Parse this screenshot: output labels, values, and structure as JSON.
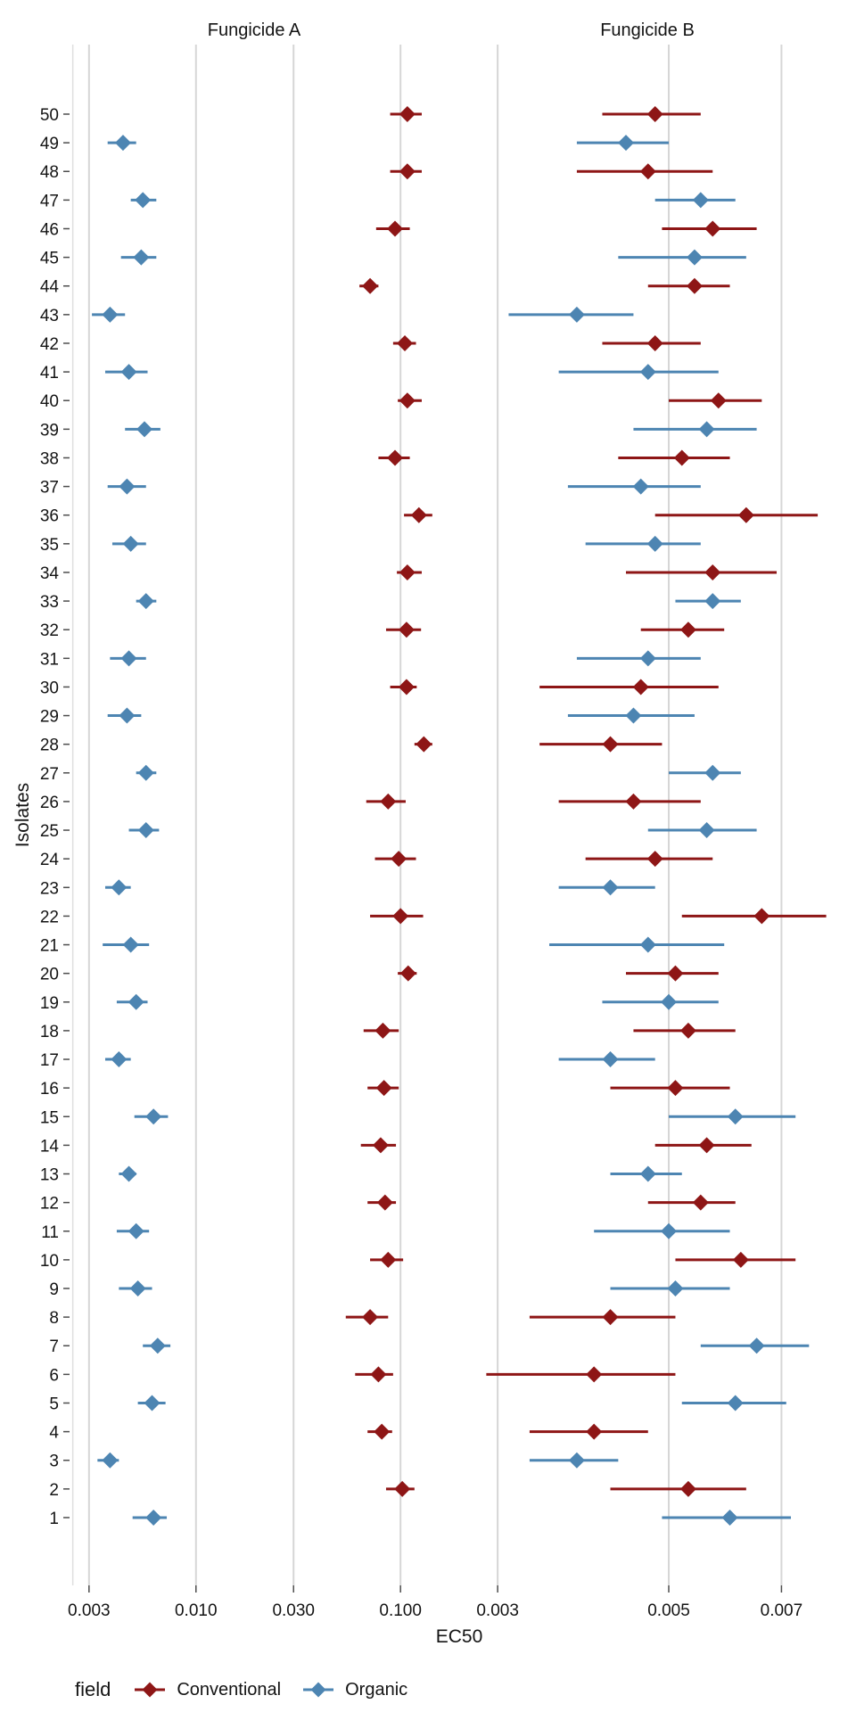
{
  "legend": {
    "title": "field",
    "items": [
      {
        "label": "Conventional",
        "color": "#8E1616"
      },
      {
        "label": "Organic",
        "color": "#4D85B2"
      }
    ]
  },
  "chart_data": {
    "type": "scatter",
    "variant": "pointrange-forest",
    "xlabel": "EC50",
    "ylabel": "Isolates",
    "x_scale": "log10",
    "grid": "major-vertical-only",
    "legend_position": "bottom-left",
    "y_ticks": [
      1,
      2,
      3,
      4,
      5,
      6,
      7,
      8,
      9,
      10,
      11,
      12,
      13,
      14,
      15,
      16,
      17,
      18,
      19,
      20,
      21,
      22,
      23,
      24,
      25,
      26,
      27,
      28,
      29,
      30,
      31,
      32,
      33,
      34,
      35,
      36,
      37,
      38,
      39,
      40,
      41,
      42,
      43,
      44,
      45,
      46,
      47,
      48,
      49,
      50
    ],
    "columns": [
      "isolate",
      "field",
      "ec50",
      "ci_low",
      "ci_high"
    ],
    "facets": [
      {
        "title": "Fungicide A",
        "x_ticks": [
          0.003,
          0.01,
          0.03,
          0.1
        ],
        "x_tick_labels": [
          "0.003",
          "0.010",
          "0.030",
          "0.100"
        ],
        "x_minor_ticks": [
          0.0025
        ],
        "x_domain": [
          0.00241,
          0.1537
        ],
        "rows": [
          [
            1,
            "Organic",
            0.0062,
            0.0049,
            0.0072
          ],
          [
            2,
            "Conventional",
            0.102,
            0.085,
            0.117
          ],
          [
            3,
            "Organic",
            0.0038,
            0.0033,
            0.0042
          ],
          [
            4,
            "Conventional",
            0.081,
            0.069,
            0.091
          ],
          [
            5,
            "Organic",
            0.0061,
            0.0052,
            0.0071
          ],
          [
            6,
            "Conventional",
            0.078,
            0.06,
            0.092
          ],
          [
            7,
            "Organic",
            0.0065,
            0.0055,
            0.0075
          ],
          [
            8,
            "Conventional",
            0.071,
            0.054,
            0.087
          ],
          [
            9,
            "Organic",
            0.0052,
            0.0042,
            0.0061
          ],
          [
            10,
            "Conventional",
            0.087,
            0.071,
            0.103
          ],
          [
            11,
            "Organic",
            0.0051,
            0.0041,
            0.0059
          ],
          [
            12,
            "Conventional",
            0.084,
            0.069,
            0.095
          ],
          [
            13,
            "Organic",
            0.0047,
            0.0042,
            0.0051
          ],
          [
            14,
            "Conventional",
            0.08,
            0.064,
            0.095
          ],
          [
            15,
            "Organic",
            0.0062,
            0.005,
            0.0073
          ],
          [
            16,
            "Conventional",
            0.083,
            0.069,
            0.098
          ],
          [
            17,
            "Organic",
            0.0042,
            0.0036,
            0.0048
          ],
          [
            18,
            "Conventional",
            0.082,
            0.066,
            0.098
          ],
          [
            19,
            "Organic",
            0.0051,
            0.0041,
            0.0058
          ],
          [
            20,
            "Conventional",
            0.109,
            0.097,
            0.12
          ],
          [
            21,
            "Organic",
            0.0048,
            0.0035,
            0.0059
          ],
          [
            22,
            "Conventional",
            0.1,
            0.071,
            0.129
          ],
          [
            23,
            "Organic",
            0.0042,
            0.0036,
            0.0048
          ],
          [
            24,
            "Conventional",
            0.098,
            0.075,
            0.119
          ],
          [
            25,
            "Organic",
            0.0057,
            0.0047,
            0.0066
          ],
          [
            26,
            "Conventional",
            0.087,
            0.068,
            0.106
          ],
          [
            27,
            "Organic",
            0.0057,
            0.0051,
            0.0064
          ],
          [
            28,
            "Conventional",
            0.13,
            0.117,
            0.143
          ],
          [
            29,
            "Organic",
            0.0046,
            0.0037,
            0.0054
          ],
          [
            30,
            "Conventional",
            0.107,
            0.089,
            0.12
          ],
          [
            31,
            "Organic",
            0.0047,
            0.0038,
            0.0057
          ],
          [
            32,
            "Conventional",
            0.107,
            0.085,
            0.126
          ],
          [
            33,
            "Organic",
            0.0057,
            0.0051,
            0.0064
          ],
          [
            34,
            "Conventional",
            0.108,
            0.096,
            0.127
          ],
          [
            35,
            "Organic",
            0.0048,
            0.0039,
            0.0057
          ],
          [
            36,
            "Conventional",
            0.123,
            0.104,
            0.143
          ],
          [
            37,
            "Organic",
            0.0046,
            0.0037,
            0.0057
          ],
          [
            38,
            "Conventional",
            0.094,
            0.078,
            0.111
          ],
          [
            39,
            "Organic",
            0.0056,
            0.0045,
            0.0067
          ],
          [
            40,
            "Conventional",
            0.108,
            0.097,
            0.127
          ],
          [
            41,
            "Organic",
            0.0047,
            0.0036,
            0.0058
          ],
          [
            42,
            "Conventional",
            0.105,
            0.092,
            0.119
          ],
          [
            43,
            "Organic",
            0.0038,
            0.0031,
            0.0045
          ],
          [
            44,
            "Conventional",
            0.071,
            0.063,
            0.078
          ],
          [
            45,
            "Organic",
            0.0054,
            0.0043,
            0.0064
          ],
          [
            46,
            "Conventional",
            0.094,
            0.076,
            0.111
          ],
          [
            47,
            "Organic",
            0.0055,
            0.0048,
            0.0064
          ],
          [
            48,
            "Conventional",
            0.108,
            0.089,
            0.127
          ],
          [
            49,
            "Organic",
            0.0044,
            0.0037,
            0.0051
          ],
          [
            50,
            "Conventional",
            0.108,
            0.089,
            0.127
          ]
        ]
      },
      {
        "title": "Fungicide B",
        "x_ticks": [
          0.003,
          0.005,
          0.007
        ],
        "x_tick_labels": [
          "0.003",
          "0.005",
          "0.007"
        ],
        "x_minor_ticks": [],
        "x_domain": [
          0.00257,
          0.00856
        ],
        "rows": [
          [
            1,
            "Organic",
            0.006,
            0.0049,
            0.0072
          ],
          [
            2,
            "Conventional",
            0.0053,
            0.0042,
            0.0063
          ],
          [
            3,
            "Organic",
            0.0038,
            0.0033,
            0.0043
          ],
          [
            4,
            "Conventional",
            0.004,
            0.0033,
            0.0047
          ],
          [
            5,
            "Organic",
            0.0061,
            0.0052,
            0.0071
          ],
          [
            6,
            "Conventional",
            0.004,
            0.0029,
            0.0051
          ],
          [
            7,
            "Organic",
            0.0065,
            0.0055,
            0.0076
          ],
          [
            8,
            "Conventional",
            0.0042,
            0.0033,
            0.0051
          ],
          [
            9,
            "Organic",
            0.0051,
            0.0042,
            0.006
          ],
          [
            10,
            "Conventional",
            0.0062,
            0.0051,
            0.0073
          ],
          [
            11,
            "Organic",
            0.005,
            0.004,
            0.006
          ],
          [
            12,
            "Conventional",
            0.0055,
            0.0047,
            0.0061
          ],
          [
            13,
            "Organic",
            0.0047,
            0.0042,
            0.0052
          ],
          [
            14,
            "Conventional",
            0.0056,
            0.0048,
            0.0064
          ],
          [
            15,
            "Organic",
            0.0061,
            0.005,
            0.0073
          ],
          [
            16,
            "Conventional",
            0.0051,
            0.0042,
            0.006
          ],
          [
            17,
            "Organic",
            0.0042,
            0.0036,
            0.0048
          ],
          [
            18,
            "Conventional",
            0.0053,
            0.0045,
            0.0061
          ],
          [
            19,
            "Organic",
            0.005,
            0.0041,
            0.0058
          ],
          [
            20,
            "Conventional",
            0.0051,
            0.0044,
            0.0058
          ],
          [
            21,
            "Organic",
            0.0047,
            0.0035,
            0.0059
          ],
          [
            22,
            "Conventional",
            0.0066,
            0.0052,
            0.008
          ],
          [
            23,
            "Organic",
            0.0042,
            0.0036,
            0.0048
          ],
          [
            24,
            "Conventional",
            0.0048,
            0.0039,
            0.0057
          ],
          [
            25,
            "Organic",
            0.0056,
            0.0047,
            0.0065
          ],
          [
            26,
            "Conventional",
            0.0045,
            0.0036,
            0.0055
          ],
          [
            27,
            "Organic",
            0.0057,
            0.005,
            0.0062
          ],
          [
            28,
            "Conventional",
            0.0042,
            0.0034,
            0.0049
          ],
          [
            29,
            "Organic",
            0.0045,
            0.0037,
            0.0054
          ],
          [
            30,
            "Conventional",
            0.0046,
            0.0034,
            0.0058
          ],
          [
            31,
            "Organic",
            0.0047,
            0.0038,
            0.0055
          ],
          [
            32,
            "Conventional",
            0.0053,
            0.0046,
            0.0059
          ],
          [
            33,
            "Organic",
            0.0057,
            0.0051,
            0.0062
          ],
          [
            34,
            "Conventional",
            0.0057,
            0.0044,
            0.0069
          ],
          [
            35,
            "Organic",
            0.0048,
            0.0039,
            0.0055
          ],
          [
            36,
            "Conventional",
            0.0063,
            0.0048,
            0.0078
          ],
          [
            37,
            "Organic",
            0.0046,
            0.0037,
            0.0055
          ],
          [
            38,
            "Conventional",
            0.0052,
            0.0043,
            0.006
          ],
          [
            39,
            "Organic",
            0.0056,
            0.0045,
            0.0065
          ],
          [
            40,
            "Conventional",
            0.0058,
            0.005,
            0.0066
          ],
          [
            41,
            "Organic",
            0.0047,
            0.0036,
            0.0058
          ],
          [
            42,
            "Conventional",
            0.0048,
            0.0041,
            0.0055
          ],
          [
            43,
            "Organic",
            0.0038,
            0.0031,
            0.0045
          ],
          [
            44,
            "Conventional",
            0.0054,
            0.0047,
            0.006
          ],
          [
            45,
            "Organic",
            0.0054,
            0.0043,
            0.0063
          ],
          [
            46,
            "Conventional",
            0.0057,
            0.0049,
            0.0065
          ],
          [
            47,
            "Organic",
            0.0055,
            0.0048,
            0.0061
          ],
          [
            48,
            "Conventional",
            0.0047,
            0.0038,
            0.0057
          ],
          [
            49,
            "Organic",
            0.0044,
            0.0038,
            0.005
          ],
          [
            50,
            "Conventional",
            0.0048,
            0.0041,
            0.0055
          ]
        ]
      }
    ],
    "style": {
      "conventional_color": "#8E1616",
      "organic_color": "#4D85B2",
      "grid_major_color": "#D6D6D6",
      "grid_minor_color": "#DFDFDF",
      "tick_color": "#4D4D4D",
      "text_color": "#141414"
    }
  }
}
